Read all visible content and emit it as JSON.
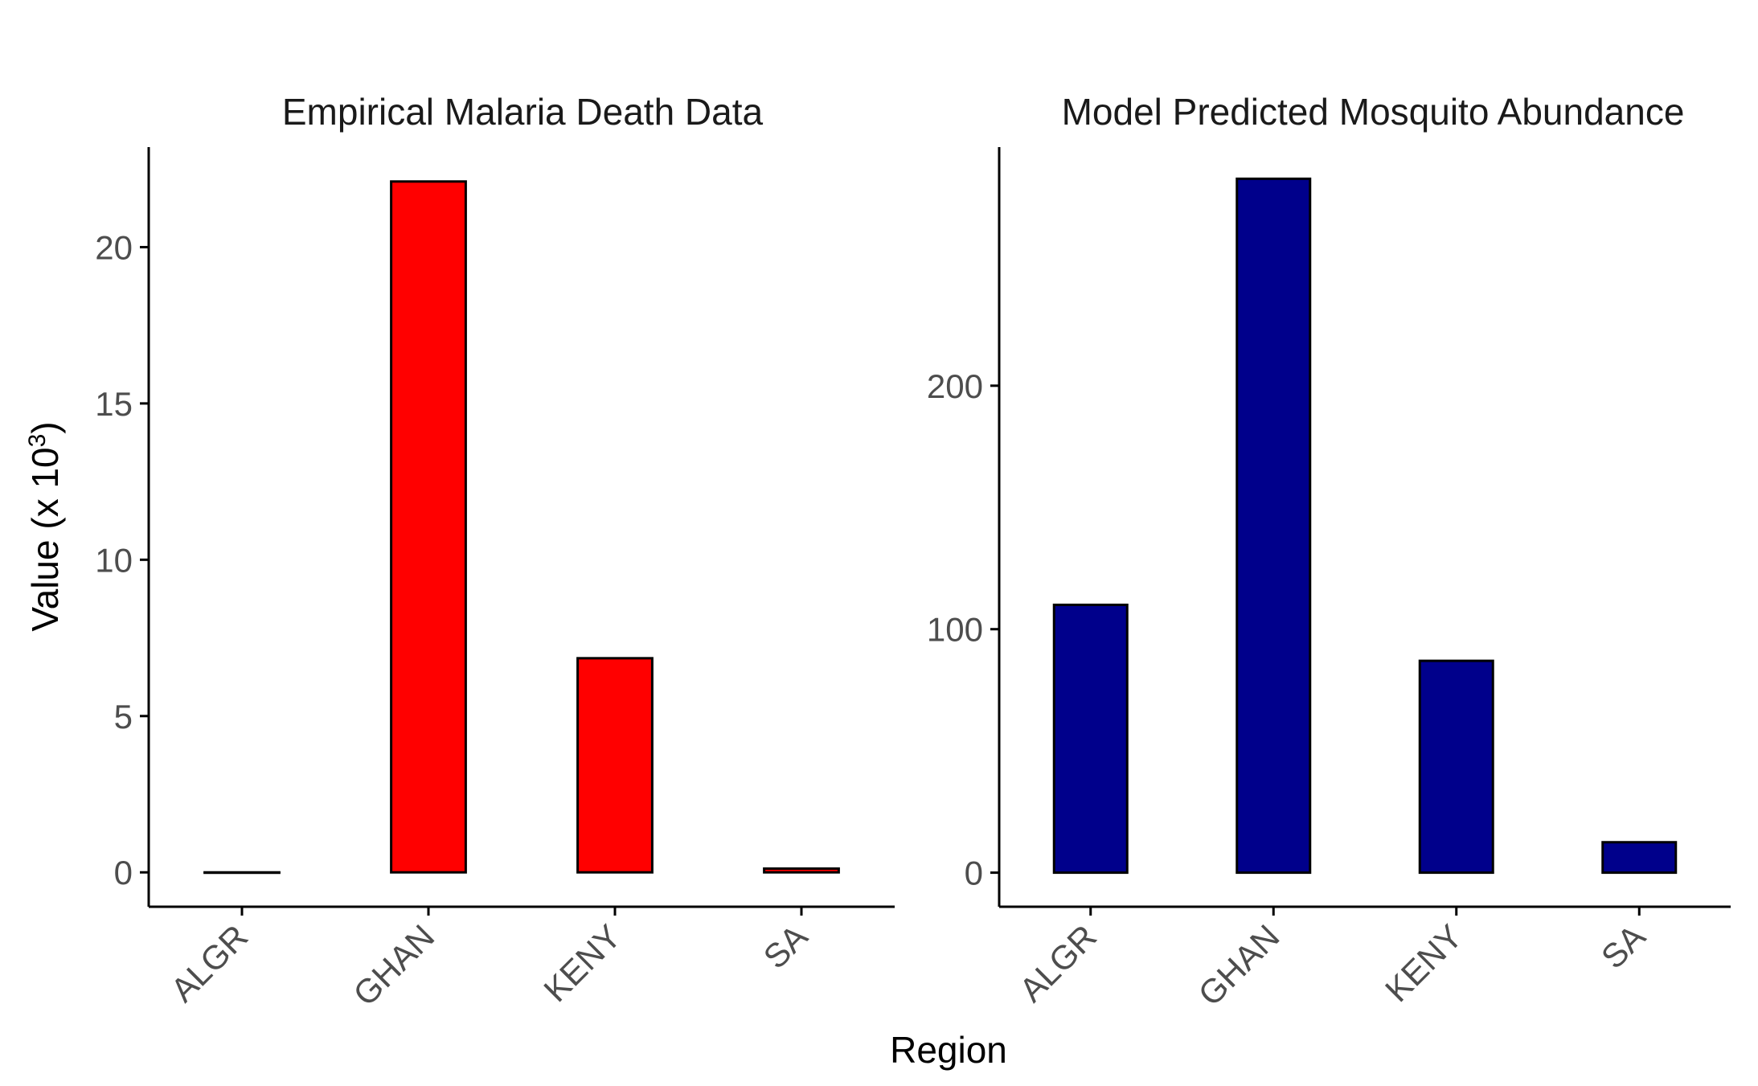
{
  "shared": {
    "ylabel_prefix": "Value (x 10",
    "ylabel_exponent": "3",
    "ylabel_suffix": ")",
    "xlabel": "Region"
  },
  "chart_data": [
    {
      "type": "bar",
      "title": "Empirical Malaria Death Data",
      "categories": [
        "ALGR",
        "GHAN",
        "KENY",
        "SA"
      ],
      "values": [
        0.0,
        22.1,
        6.85,
        0.12
      ],
      "ylim": [
        -1.1,
        23.2
      ],
      "yticks": [
        0,
        5,
        10,
        15,
        20
      ],
      "bar_color": "#ff0000",
      "grid": false,
      "xlabel": "Region",
      "ylabel": "Value (x 10^3)"
    },
    {
      "type": "bar",
      "title": "Model Predicted Mosquito Abundance",
      "categories": [
        "ALGR",
        "GHAN",
        "KENY",
        "SA"
      ],
      "values": [
        110,
        285,
        87,
        12.5
      ],
      "ylim": [
        -14,
        298
      ],
      "yticks": [
        0,
        100,
        200
      ],
      "bar_color": "#00008b",
      "grid": false,
      "xlabel": "Region",
      "ylabel": "Value (x 10^3)"
    }
  ]
}
